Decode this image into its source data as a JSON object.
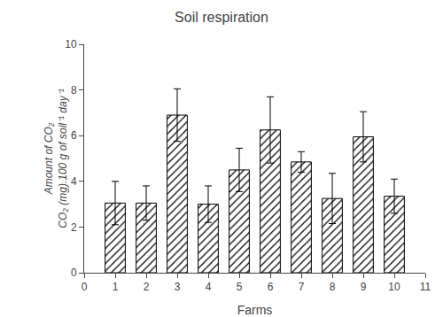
{
  "chart_data": {
    "type": "bar",
    "title": "Soil respiration",
    "xlabel": "Farms",
    "ylabel": [
      "Amount of CO₂",
      "CO₂ (mg).100 g of soil⁻¹ day⁻¹"
    ],
    "x": [
      1,
      2,
      3,
      4,
      5,
      6,
      7,
      8,
      9,
      10
    ],
    "values": [
      3.05,
      3.05,
      6.9,
      3.0,
      4.5,
      6.25,
      4.85,
      3.25,
      5.95,
      3.35
    ],
    "errors": [
      0.95,
      0.75,
      1.15,
      0.8,
      0.95,
      1.45,
      0.45,
      1.1,
      1.1,
      0.75
    ],
    "color": "white",
    "xlim": [
      0,
      11
    ],
    "xticks": [
      0,
      1,
      2,
      3,
      4,
      5,
      6,
      7,
      8,
      9,
      10,
      11
    ],
    "ylim": [
      0,
      10
    ],
    "yticks": [
      0,
      2,
      4,
      6,
      8,
      10
    ],
    "grid": false
  }
}
